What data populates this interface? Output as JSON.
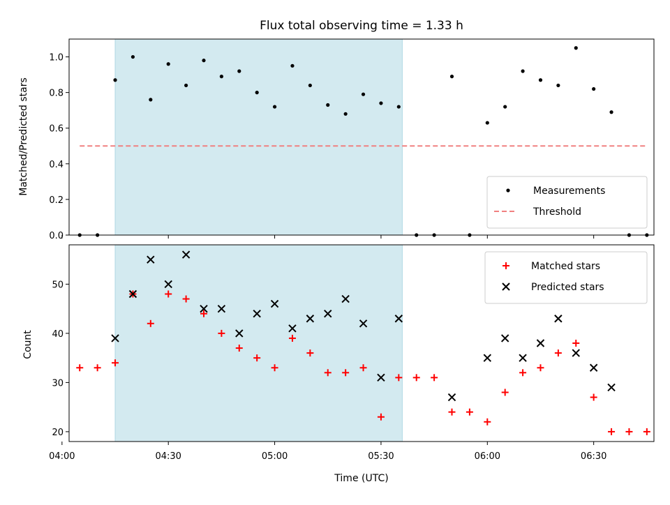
{
  "chart_data": [
    {
      "type": "scatter",
      "title": "Flux total observing time = 1.33 h",
      "xlabel": "",
      "ylabel": "Matched/Predicted stars",
      "ylim": [
        0,
        1.1
      ],
      "yticks": [
        "0.0",
        "0.2",
        "0.4",
        "0.6",
        "0.8",
        "1.0"
      ],
      "xlim": [
        "04:02",
        "06:47"
      ],
      "highlight_span": {
        "start": "04:15",
        "end": "05:36",
        "color": "#d3eaf0"
      },
      "legend_position": "lower-right",
      "threshold": {
        "name": "Threshold",
        "value": 0.5,
        "x_start": "04:05",
        "x_end": "06:45",
        "color": "#f08080",
        "style": "dashed"
      },
      "series": [
        {
          "name": "Measurements",
          "marker": "dot",
          "color": "#000000",
          "points": [
            [
              "04:05",
              0.0
            ],
            [
              "04:10",
              0.0
            ],
            [
              "04:15",
              0.87
            ],
            [
              "04:20",
              1.0
            ],
            [
              "04:25",
              0.76
            ],
            [
              "04:30",
              0.96
            ],
            [
              "04:35",
              0.84
            ],
            [
              "04:40",
              0.98
            ],
            [
              "04:45",
              0.89
            ],
            [
              "04:50",
              0.92
            ],
            [
              "04:55",
              0.8
            ],
            [
              "05:00",
              0.72
            ],
            [
              "05:05",
              0.95
            ],
            [
              "05:10",
              0.84
            ],
            [
              "05:15",
              0.73
            ],
            [
              "05:20",
              0.68
            ],
            [
              "05:25",
              0.79
            ],
            [
              "05:30",
              0.74
            ],
            [
              "05:35",
              0.72
            ],
            [
              "05:40",
              0.0
            ],
            [
              "05:45",
              0.0
            ],
            [
              "05:50",
              0.89
            ],
            [
              "05:55",
              0.0
            ],
            [
              "06:00",
              0.63
            ],
            [
              "06:05",
              0.72
            ],
            [
              "06:10",
              0.92
            ],
            [
              "06:15",
              0.87
            ],
            [
              "06:20",
              0.84
            ],
            [
              "06:25",
              1.05
            ],
            [
              "06:30",
              0.82
            ],
            [
              "06:35",
              0.69
            ],
            [
              "06:40",
              0.0
            ],
            [
              "06:45",
              0.0
            ]
          ]
        }
      ]
    },
    {
      "type": "scatter",
      "title": "",
      "xlabel": "Time (UTC)",
      "ylabel": "Count",
      "ylim": [
        18,
        58
      ],
      "yticks": [
        "20",
        "30",
        "40",
        "50"
      ],
      "xlim": [
        "04:02",
        "06:47"
      ],
      "xticks": [
        "04:00",
        "04:30",
        "05:00",
        "05:30",
        "06:00",
        "06:30"
      ],
      "highlight_span": {
        "start": "04:15",
        "end": "05:36",
        "color": "#d3eaf0"
      },
      "legend_position": "upper-right",
      "series": [
        {
          "name": "Matched stars",
          "marker": "plus",
          "color": "#ff0000",
          "points": [
            [
              "04:05",
              33
            ],
            [
              "04:10",
              33
            ],
            [
              "04:15",
              34
            ],
            [
              "04:20",
              48
            ],
            [
              "04:25",
              42
            ],
            [
              "04:30",
              48
            ],
            [
              "04:35",
              47
            ],
            [
              "04:40",
              44
            ],
            [
              "04:45",
              40
            ],
            [
              "04:50",
              37
            ],
            [
              "04:55",
              35
            ],
            [
              "05:00",
              33
            ],
            [
              "05:05",
              39
            ],
            [
              "05:10",
              36
            ],
            [
              "05:15",
              32
            ],
            [
              "05:20",
              32
            ],
            [
              "05:25",
              33
            ],
            [
              "05:30",
              23
            ],
            [
              "05:35",
              31
            ],
            [
              "05:40",
              31
            ],
            [
              "05:45",
              31
            ],
            [
              "05:50",
              24
            ],
            [
              "05:55",
              24
            ],
            [
              "06:00",
              22
            ],
            [
              "06:05",
              28
            ],
            [
              "06:10",
              32
            ],
            [
              "06:15",
              33
            ],
            [
              "06:20",
              36
            ],
            [
              "06:25",
              38
            ],
            [
              "06:30",
              27
            ],
            [
              "06:35",
              20
            ],
            [
              "06:40",
              20
            ],
            [
              "06:45",
              20
            ]
          ]
        },
        {
          "name": "Predicted stars",
          "marker": "x",
          "color": "#000000",
          "points": [
            [
              "04:15",
              39
            ],
            [
              "04:20",
              48
            ],
            [
              "04:25",
              55
            ],
            [
              "04:30",
              50
            ],
            [
              "04:35",
              56
            ],
            [
              "04:40",
              45
            ],
            [
              "04:45",
              45
            ],
            [
              "04:50",
              40
            ],
            [
              "04:55",
              44
            ],
            [
              "05:00",
              46
            ],
            [
              "05:05",
              41
            ],
            [
              "05:10",
              43
            ],
            [
              "05:15",
              44
            ],
            [
              "05:20",
              47
            ],
            [
              "05:25",
              42
            ],
            [
              "05:30",
              31
            ],
            [
              "05:35",
              43
            ],
            [
              "05:50",
              27
            ],
            [
              "06:00",
              35
            ],
            [
              "06:05",
              39
            ],
            [
              "06:10",
              35
            ],
            [
              "06:15",
              38
            ],
            [
              "06:20",
              43
            ],
            [
              "06:25",
              36
            ],
            [
              "06:30",
              33
            ],
            [
              "06:35",
              29
            ]
          ]
        }
      ]
    }
  ]
}
